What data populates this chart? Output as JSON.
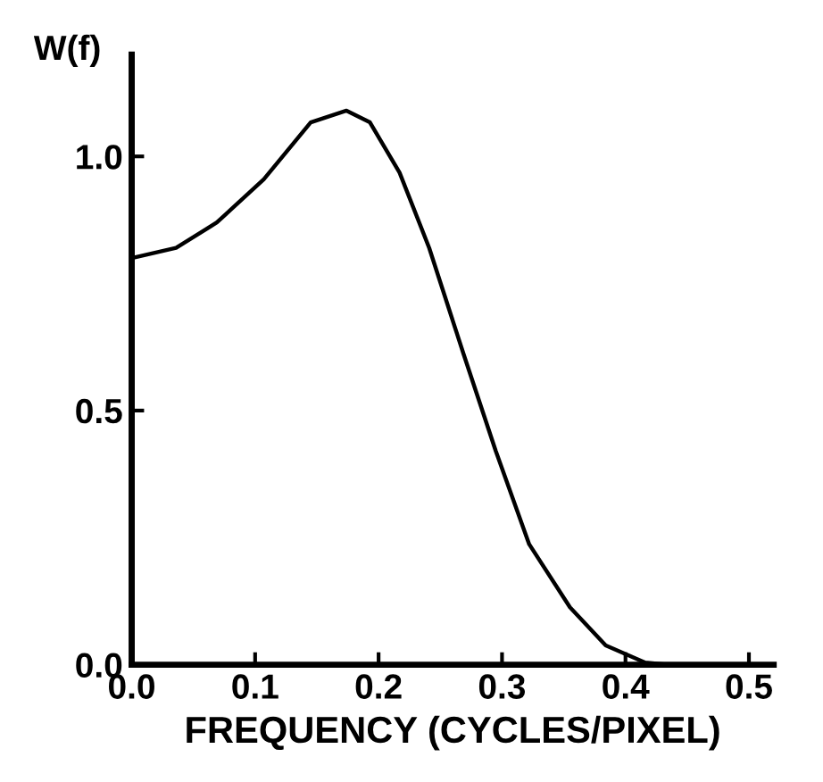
{
  "chart_data": {
    "type": "line",
    "ylabel": "W(f)",
    "xlabel": "FREQUENCY (CYCLES/PIXEL)",
    "x": [
      0,
      0.036,
      0.069,
      0.107,
      0.145,
      0.174,
      0.193,
      0.217,
      0.241,
      0.269,
      0.295,
      0.322,
      0.355,
      0.384,
      0.416,
      0.435,
      0.5
    ],
    "series": [
      {
        "color": "#000000",
        "values": [
          0.8,
          0.82,
          0.87,
          0.955,
          1.067,
          1.09,
          1.067,
          0.968,
          0.82,
          0.61,
          0.42,
          0.237,
          0.113,
          0.038,
          0.004,
          0,
          0
        ]
      }
    ],
    "xlim": [
      0,
      0.52
    ],
    "ylim": [
      0,
      1.2
    ],
    "xticks": [
      {
        "value": 0,
        "label": "0.0"
      },
      {
        "value": 0.1,
        "label": "0.1"
      },
      {
        "value": 0.2,
        "label": "0.2"
      },
      {
        "value": 0.3,
        "label": "0.3"
      },
      {
        "value": 0.4,
        "label": "0.4"
      },
      {
        "value": 0.5,
        "label": "0.5"
      }
    ],
    "yticks": [
      {
        "value": 0,
        "label": "0.0"
      },
      {
        "value": 0.5,
        "label": "0.5"
      },
      {
        "value": 1.0,
        "label": "1.0"
      }
    ],
    "grid": false,
    "legend": false,
    "marker": "none",
    "line_style": "solid"
  }
}
